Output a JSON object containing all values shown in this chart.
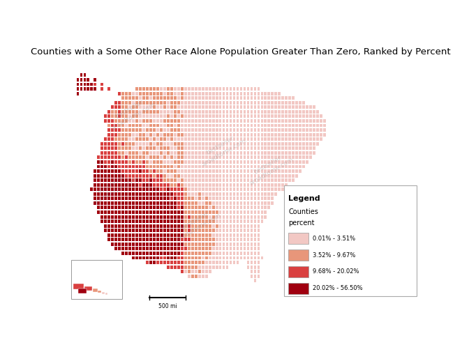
{
  "title": "Counties with a Some Other Race Alone Population Greater Than Zero, Ranked by Percent",
  "title_fontsize": 9.5,
  "legend_title": "Legend",
  "legend_subtitle1": "Counties",
  "legend_subtitle2": "percent",
  "legend_entries": [
    {
      "label": "0.01% - 3.51%",
      "color": "#f2c8c4"
    },
    {
      "label": "3.52% - 9.67%",
      "color": "#e8967a"
    },
    {
      "label": "9.68% - 20.02%",
      "color": "#d94040"
    },
    {
      "label": "20.02% - 56.50%",
      "color": "#a00010"
    }
  ],
  "background_color": "#ffffff",
  "figure_width": 6.72,
  "figure_height": 5.18,
  "dpi": 100,
  "map_outer_color": "#d8d8d8",
  "county_edge_color": "#ffffff",
  "county_edge_width": 0.15
}
